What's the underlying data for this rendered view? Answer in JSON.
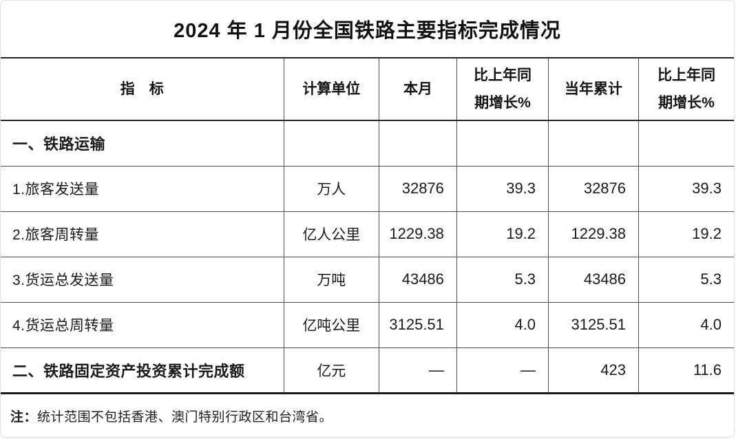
{
  "title": "2024 年 1 月份全国铁路主要指标完成情况",
  "table": {
    "columns": [
      "指　标",
      "计算单位",
      "本月",
      "比上年同\n期增长%",
      "当年累计",
      "比上年同\n期增长%"
    ],
    "rows": [
      {
        "cells": [
          "一、铁路运输",
          "",
          "",
          "",
          "",
          ""
        ]
      },
      {
        "cells": [
          "1.旅客发送量",
          "万人",
          "32876",
          "39.3",
          "32876",
          "39.3"
        ]
      },
      {
        "cells": [
          "2.旅客周转量",
          "亿人公里",
          "1229.38",
          "19.2",
          "1229.38",
          "19.2"
        ]
      },
      {
        "cells": [
          "3.货运总发送量",
          "万吨",
          "43486",
          "5.3",
          "43486",
          "5.3"
        ]
      },
      {
        "cells": [
          "4.货运总周转量",
          "亿吨公里",
          "3125.51",
          "4.0",
          "3125.51",
          "4.0"
        ]
      },
      {
        "cells": [
          "二、铁路固定资产投资累计完成额",
          "亿元",
          "—",
          "—",
          "423",
          "11.6"
        ]
      }
    ]
  },
  "note": {
    "label": "注：",
    "text": "统计范围不包括香港、澳门特别行政区和台湾省。"
  }
}
